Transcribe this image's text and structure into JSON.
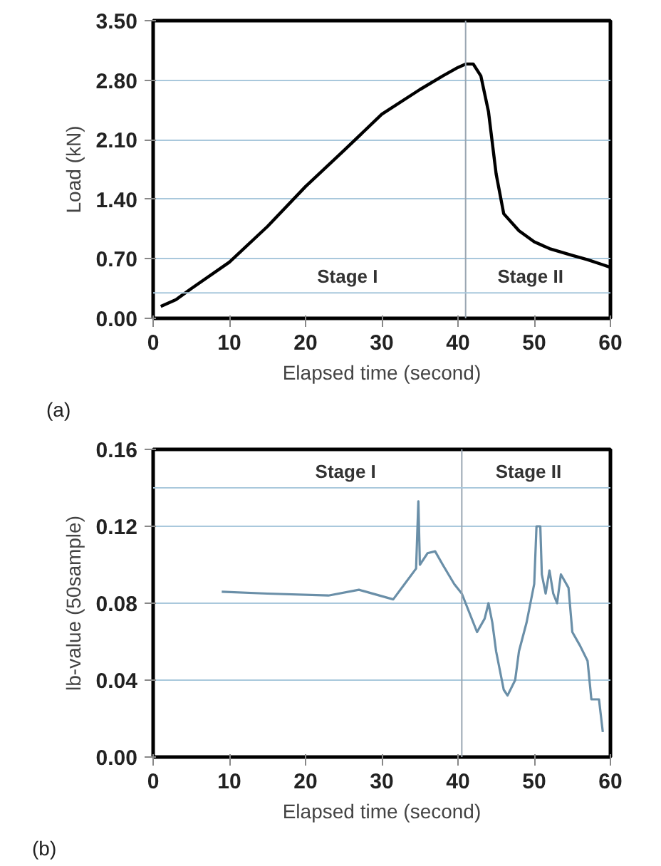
{
  "chart_data": [
    {
      "type": "line",
      "xlabel": "Elapsed time (second)",
      "ylabel": "Load (kN)",
      "x": [
        1,
        3,
        5,
        10,
        15,
        20,
        25,
        30,
        35,
        38,
        40,
        41,
        42,
        43,
        44,
        45,
        46,
        48,
        50,
        52,
        55,
        57,
        59,
        60
      ],
      "series": [
        {
          "color": "#000000",
          "values": [
            0.14,
            0.22,
            0.35,
            0.66,
            1.08,
            1.55,
            1.97,
            2.4,
            2.69,
            2.85,
            2.95,
            2.99,
            2.99,
            2.85,
            2.43,
            1.7,
            1.23,
            1.03,
            0.9,
            0.82,
            0.74,
            0.69,
            0.63,
            0.6
          ]
        }
      ],
      "xlim": [
        0,
        60
      ],
      "xticks": [
        0,
        10,
        20,
        30,
        40,
        50,
        60
      ],
      "ylim": [
        0,
        3.5
      ],
      "yticks": [
        {
          "value": 0,
          "label": "0.00"
        },
        {
          "value": 0.7,
          "label": "0.70"
        },
        {
          "value": 1.4,
          "label": "1.40"
        },
        {
          "value": 2.1,
          "label": "2.10"
        },
        {
          "value": 2.8,
          "label": "2.80"
        },
        {
          "value": 3.5,
          "label": "3.50"
        }
      ],
      "grid": "y",
      "ref_lines": [
        {
          "axis": "x",
          "value": 41,
          "label": null,
          "color": "#9aa6b2"
        },
        {
          "axis": "y",
          "value": 0.3,
          "label": null,
          "color": "#a9c8dc"
        }
      ],
      "annotations": [
        "Stage I",
        "Stage II",
        "(a)"
      ]
    },
    {
      "type": "line",
      "xlabel": "Elapsed time (second)",
      "ylabel": "lb-value (50sample)",
      "x": [
        9,
        15,
        23,
        27,
        31.5,
        33,
        34.5,
        34.8,
        35,
        36,
        37,
        38,
        39.5,
        40.5,
        41,
        42,
        42.5,
        43.5,
        44,
        44.5,
        45,
        45.5,
        46,
        46.5,
        47.5,
        48,
        49,
        50,
        50.3,
        50.8,
        51,
        51.5,
        52,
        52.5,
        53,
        53.5,
        54.5,
        55,
        56,
        57,
        57.5,
        58.5,
        59
      ],
      "series": [
        {
          "color": "#6a8fa8",
          "values": [
            0.086,
            0.085,
            0.084,
            0.087,
            0.082,
            0.09,
            0.098,
            0.133,
            0.1,
            0.106,
            0.107,
            0.1,
            0.09,
            0.085,
            0.08,
            0.07,
            0.065,
            0.072,
            0.08,
            0.07,
            0.055,
            0.045,
            0.035,
            0.032,
            0.04,
            0.055,
            0.07,
            0.09,
            0.12,
            0.12,
            0.095,
            0.085,
            0.097,
            0.085,
            0.08,
            0.095,
            0.088,
            0.065,
            0.058,
            0.05,
            0.03,
            0.03,
            0.013
          ]
        }
      ],
      "xlim": [
        0,
        60
      ],
      "xticks": [
        0,
        10,
        20,
        30,
        40,
        50,
        60
      ],
      "ylim": [
        0,
        0.16
      ],
      "yticks": [
        {
          "value": 0,
          "label": "0.00"
        },
        {
          "value": 0.04,
          "label": "0.04"
        },
        {
          "value": 0.08,
          "label": "0.08"
        },
        {
          "value": 0.12,
          "label": "0.12"
        },
        {
          "value": 0.16,
          "label": "0.16"
        }
      ],
      "grid": "y",
      "ref_lines": [
        {
          "axis": "x",
          "value": 40.5,
          "label": null,
          "color": "#9aa6b2"
        },
        {
          "axis": "y",
          "value": 0.14,
          "label": null,
          "color": "#a9c8dc"
        }
      ],
      "annotations": [
        "Stage I",
        "Stage II",
        "(b)"
      ]
    }
  ]
}
